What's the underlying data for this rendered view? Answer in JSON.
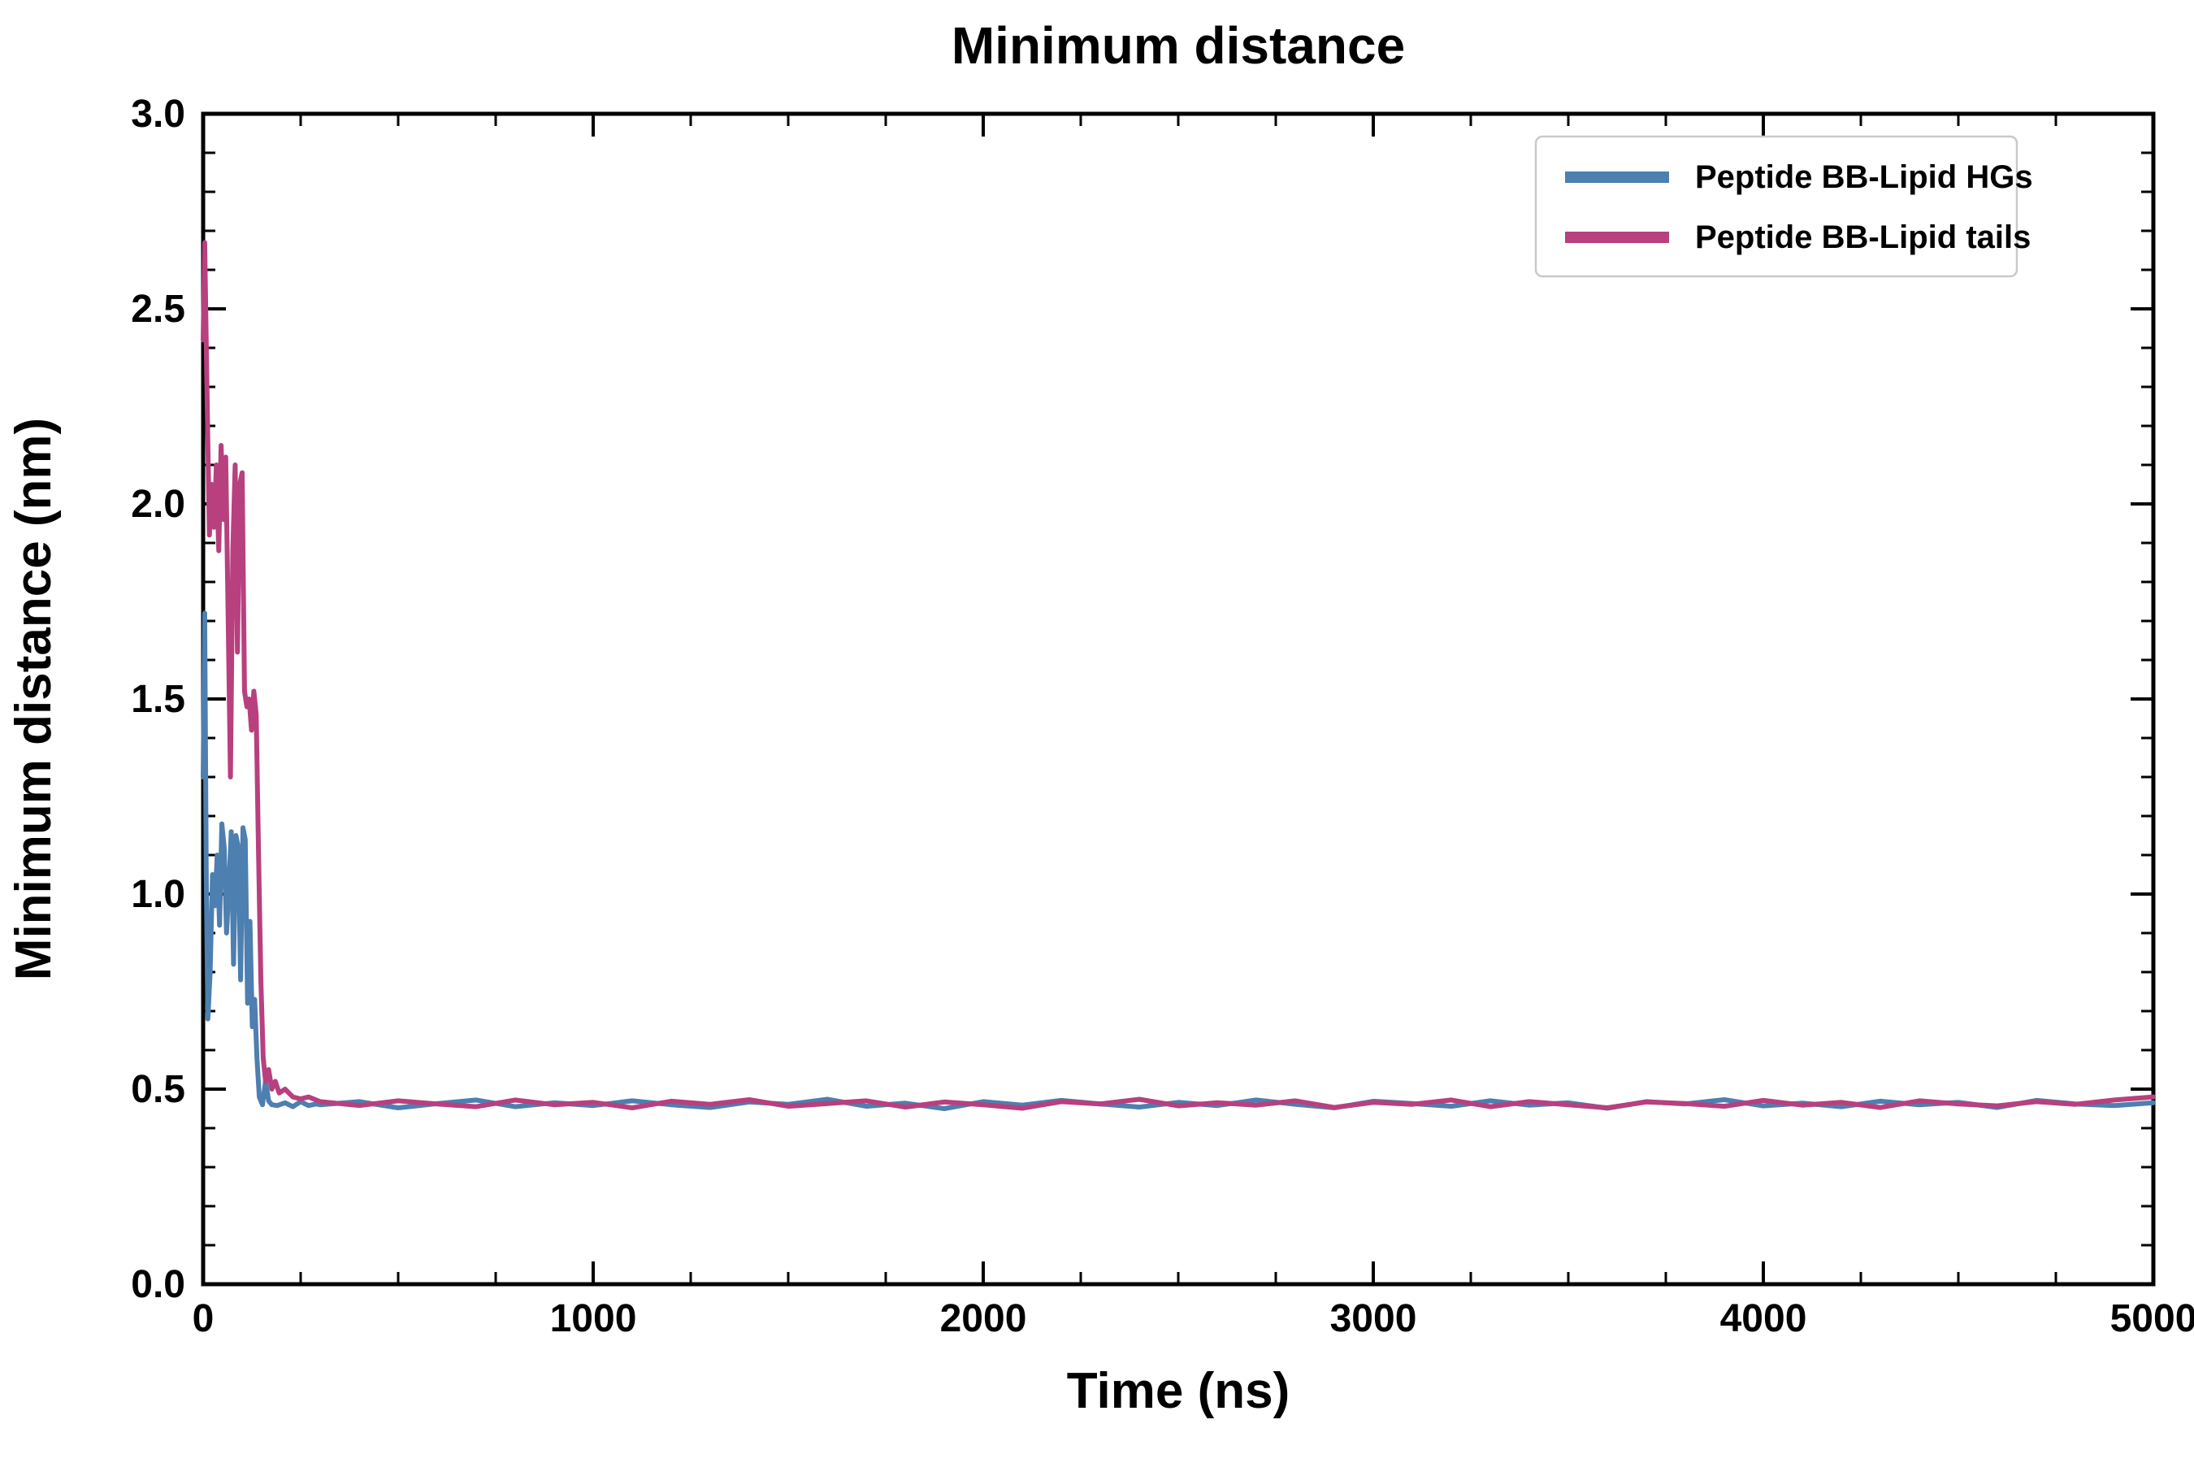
{
  "chart_data": {
    "type": "line",
    "title": "Minimum distance",
    "xlabel": "Time (ns)",
    "ylabel": "Minimum distance (nm)",
    "xlim": [
      0,
      5000
    ],
    "ylim": [
      0.0,
      3.0
    ],
    "grid": false,
    "legend_position": "upper right",
    "x_major_ticks": [
      0,
      1000,
      2000,
      3000,
      4000,
      5000
    ],
    "x_tick_labels": [
      "0",
      "1000",
      "2000",
      "3000",
      "4000",
      "5000"
    ],
    "x_minor_step": 250,
    "y_major_ticks": [
      0.0,
      0.5,
      1.0,
      1.5,
      2.0,
      2.5,
      3.0
    ],
    "y_tick_labels": [
      "0.0",
      "0.5",
      "1.0",
      "1.5",
      "2.0",
      "2.5",
      "3.0"
    ],
    "y_minor_step": 0.1,
    "series": [
      {
        "name": "Peptide BB-Lipid HGs",
        "color": "#4d7fb0",
        "points": [
          [
            0,
            1.3
          ],
          [
            4,
            1.72
          ],
          [
            8,
            1.05
          ],
          [
            12,
            0.68
          ],
          [
            18,
            0.8
          ],
          [
            24,
            1.05
          ],
          [
            30,
            0.97
          ],
          [
            36,
            1.1
          ],
          [
            42,
            0.92
          ],
          [
            48,
            1.18
          ],
          [
            54,
            1.12
          ],
          [
            60,
            0.9
          ],
          [
            66,
            1.02
          ],
          [
            72,
            1.16
          ],
          [
            78,
            0.82
          ],
          [
            84,
            1.15
          ],
          [
            90,
            1.12
          ],
          [
            96,
            0.78
          ],
          [
            102,
            1.17
          ],
          [
            108,
            1.14
          ],
          [
            114,
            0.72
          ],
          [
            120,
            0.93
          ],
          [
            126,
            0.66
          ],
          [
            132,
            0.73
          ],
          [
            138,
            0.58
          ],
          [
            144,
            0.48
          ],
          [
            152,
            0.46
          ],
          [
            160,
            0.52
          ],
          [
            168,
            0.47
          ],
          [
            176,
            0.46
          ],
          [
            190,
            0.458
          ],
          [
            210,
            0.465
          ],
          [
            230,
            0.455
          ],
          [
            250,
            0.468
          ],
          [
            270,
            0.458
          ],
          [
            290,
            0.462
          ],
          [
            300,
            0.46
          ],
          [
            400,
            0.468
          ],
          [
            500,
            0.452
          ],
          [
            600,
            0.463
          ],
          [
            700,
            0.472
          ],
          [
            800,
            0.455
          ],
          [
            900,
            0.465
          ],
          [
            1000,
            0.458
          ],
          [
            1100,
            0.47
          ],
          [
            1200,
            0.46
          ],
          [
            1300,
            0.453
          ],
          [
            1400,
            0.467
          ],
          [
            1500,
            0.461
          ],
          [
            1600,
            0.474
          ],
          [
            1700,
            0.456
          ],
          [
            1800,
            0.464
          ],
          [
            1900,
            0.45
          ],
          [
            2000,
            0.468
          ],
          [
            2100,
            0.459
          ],
          [
            2200,
            0.471
          ],
          [
            2300,
            0.462
          ],
          [
            2400,
            0.454
          ],
          [
            2500,
            0.466
          ],
          [
            2600,
            0.458
          ],
          [
            2700,
            0.472
          ],
          [
            2800,
            0.461
          ],
          [
            2900,
            0.452
          ],
          [
            3000,
            0.469
          ],
          [
            3100,
            0.463
          ],
          [
            3200,
            0.456
          ],
          [
            3300,
            0.47
          ],
          [
            3400,
            0.459
          ],
          [
            3500,
            0.465
          ],
          [
            3600,
            0.451
          ],
          [
            3700,
            0.468
          ],
          [
            3800,
            0.462
          ],
          [
            3900,
            0.473
          ],
          [
            4000,
            0.457
          ],
          [
            4100,
            0.464
          ],
          [
            4200,
            0.455
          ],
          [
            4300,
            0.469
          ],
          [
            4400,
            0.46
          ],
          [
            4500,
            0.466
          ],
          [
            4600,
            0.453
          ],
          [
            4700,
            0.471
          ],
          [
            4800,
            0.462
          ],
          [
            4900,
            0.458
          ],
          [
            5000,
            0.465
          ]
        ]
      },
      {
        "name": "Peptide BB-Lipid tails",
        "color": "#b8407e",
        "points": [
          [
            0,
            2.42
          ],
          [
            4,
            2.67
          ],
          [
            10,
            2.28
          ],
          [
            16,
            1.92
          ],
          [
            22,
            2.05
          ],
          [
            28,
            1.94
          ],
          [
            34,
            2.1
          ],
          [
            40,
            1.88
          ],
          [
            46,
            2.15
          ],
          [
            52,
            1.96
          ],
          [
            58,
            2.12
          ],
          [
            64,
            1.72
          ],
          [
            70,
            1.3
          ],
          [
            76,
            1.88
          ],
          [
            82,
            2.1
          ],
          [
            88,
            1.62
          ],
          [
            94,
            2.05
          ],
          [
            100,
            2.08
          ],
          [
            106,
            1.52
          ],
          [
            112,
            1.48
          ],
          [
            118,
            1.5
          ],
          [
            124,
            1.42
          ],
          [
            130,
            1.52
          ],
          [
            136,
            1.46
          ],
          [
            142,
            1.1
          ],
          [
            148,
            0.78
          ],
          [
            154,
            0.58
          ],
          [
            160,
            0.52
          ],
          [
            168,
            0.55
          ],
          [
            176,
            0.5
          ],
          [
            185,
            0.52
          ],
          [
            195,
            0.49
          ],
          [
            210,
            0.5
          ],
          [
            230,
            0.48
          ],
          [
            250,
            0.475
          ],
          [
            270,
            0.48
          ],
          [
            290,
            0.472
          ],
          [
            300,
            0.468
          ],
          [
            400,
            0.458
          ],
          [
            500,
            0.47
          ],
          [
            600,
            0.462
          ],
          [
            700,
            0.455
          ],
          [
            800,
            0.472
          ],
          [
            900,
            0.46
          ],
          [
            1000,
            0.466
          ],
          [
            1100,
            0.452
          ],
          [
            1200,
            0.469
          ],
          [
            1300,
            0.461
          ],
          [
            1400,
            0.473
          ],
          [
            1500,
            0.456
          ],
          [
            1600,
            0.463
          ],
          [
            1700,
            0.47
          ],
          [
            1800,
            0.454
          ],
          [
            1900,
            0.467
          ],
          [
            2000,
            0.46
          ],
          [
            2100,
            0.451
          ],
          [
            2200,
            0.468
          ],
          [
            2300,
            0.462
          ],
          [
            2400,
            0.474
          ],
          [
            2500,
            0.457
          ],
          [
            2600,
            0.465
          ],
          [
            2700,
            0.459
          ],
          [
            2800,
            0.47
          ],
          [
            2900,
            0.453
          ],
          [
            3000,
            0.466
          ],
          [
            3100,
            0.461
          ],
          [
            3200,
            0.472
          ],
          [
            3300,
            0.455
          ],
          [
            3400,
            0.468
          ],
          [
            3500,
            0.46
          ],
          [
            3600,
            0.452
          ],
          [
            3700,
            0.467
          ],
          [
            3800,
            0.463
          ],
          [
            3900,
            0.456
          ],
          [
            4000,
            0.471
          ],
          [
            4100,
            0.459
          ],
          [
            4200,
            0.466
          ],
          [
            4300,
            0.453
          ],
          [
            4400,
            0.47
          ],
          [
            4500,
            0.462
          ],
          [
            4600,
            0.457
          ],
          [
            4700,
            0.468
          ],
          [
            4800,
            0.461
          ],
          [
            4900,
            0.472
          ],
          [
            5000,
            0.48
          ]
        ]
      }
    ]
  }
}
